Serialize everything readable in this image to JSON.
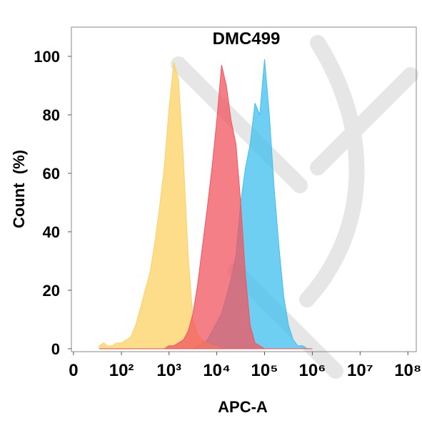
{
  "chart_data": {
    "type": "area",
    "title": "DMC499",
    "x_label": "APC-A",
    "y_label": "Count  (%)",
    "xscale": "biexponential",
    "xlim": [
      -2,
      150000000
    ],
    "xticks": [
      0,
      {
        "value": 100,
        "label": "10²"
      },
      {
        "value": 1000,
        "label": "10³"
      },
      {
        "value": 10000,
        "label": "10⁴"
      },
      {
        "value": 100000,
        "label": "10⁵"
      },
      {
        "value": 1000000,
        "label": "10⁶"
      },
      {
        "value": 10000000,
        "label": "10⁷"
      },
      {
        "value": 100000000,
        "label": "10⁸"
      }
    ],
    "ylim": [
      -1,
      110
    ],
    "yticks": [
      0,
      20,
      40,
      60,
      80,
      100
    ],
    "x": [
      32,
      40,
      50,
      63,
      79,
      100,
      126,
      158,
      200,
      251,
      316,
      398,
      501,
      631,
      794,
      1000,
      1259,
      1585,
      1995,
      2512,
      3162,
      3981,
      5012,
      6310,
      7943,
      10000,
      12589,
      15849,
      19953,
      25119,
      31623,
      39811,
      50119,
      63096,
      79433,
      100000,
      125893,
      158489,
      199526,
      251189,
      316228,
      398107,
      501187,
      630957,
      794328,
      1000000
    ],
    "series": [
      {
        "color": "#3fbfef",
        "values": [
          0,
          0,
          0,
          0,
          0,
          0,
          0,
          0,
          0,
          0,
          0,
          0,
          0,
          0,
          0,
          0,
          0,
          0,
          0,
          0,
          0,
          1,
          2,
          3,
          6,
          9,
          12,
          18,
          24,
          32,
          50,
          62,
          70,
          84,
          80,
          99,
          80,
          55,
          35,
          18,
          8,
          3,
          1,
          1,
          0,
          0
        ]
      },
      {
        "color": "#fdd263",
        "values": [
          1,
          2,
          1,
          1,
          2,
          2,
          3,
          4,
          8,
          14,
          20,
          26,
          36,
          48,
          62,
          82,
          98,
          92,
          65,
          32,
          10,
          5,
          3,
          2,
          1,
          1,
          0,
          0,
          0,
          0,
          0,
          0,
          0,
          0,
          0,
          0,
          0,
          0,
          0,
          0,
          0,
          0,
          0,
          0,
          0,
          0
        ]
      },
      {
        "color": "#f2545e",
        "values": [
          0,
          0,
          0,
          0,
          0,
          0,
          0,
          0,
          0,
          0,
          0,
          0,
          0,
          0,
          0,
          1,
          1,
          2,
          3,
          6,
          12,
          22,
          35,
          48,
          62,
          78,
          97,
          90,
          78,
          70,
          50,
          25,
          8,
          2,
          1,
          0,
          0,
          0,
          0,
          0,
          0,
          0,
          0,
          0,
          0,
          0
        ]
      }
    ]
  }
}
